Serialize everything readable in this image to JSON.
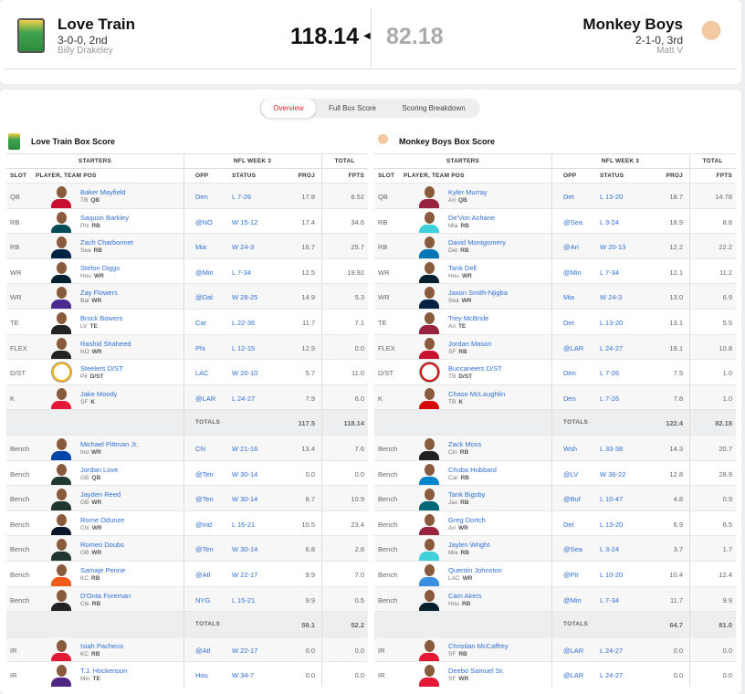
{
  "header": {
    "home": {
      "name": "Love Train",
      "record": "3-0-0, 2nd",
      "owner": "Billy Drakeley",
      "score": "118.14"
    },
    "away": {
      "name": "Monkey Boys",
      "record": "2-1-0, 3rd",
      "owner": "Matt V",
      "score": "82.18"
    },
    "winner_arrow": "◀"
  },
  "tabs": [
    {
      "label": "Overview",
      "active": true
    },
    {
      "label": "Full Box Score"
    },
    {
      "label": "Scoring Breakdown"
    }
  ],
  "colors": {
    "link": "#2f6fd6",
    "active_tab": "#e2232a"
  },
  "columns": {
    "starters": "STARTERS",
    "week": "NFL WEEK 3",
    "total": "TOTAL",
    "slot": "SLOT",
    "player": "PLAYER, TEAM POS",
    "opp": "OPP",
    "status": "STATUS",
    "proj": "PROJ",
    "fpts": "FPTS",
    "totals": "TOTALS"
  },
  "boxes": [
    {
      "title": "Love Train Box Score",
      "starters": [
        {
          "slot": "QB",
          "name": "Baker Mayfield",
          "team": "TB",
          "pos": "QB",
          "opp": "Den",
          "status": "L 7-26",
          "proj": "17.8",
          "fpts": "8.52",
          "c": "#c8102e"
        },
        {
          "slot": "RB",
          "name": "Saquon Barkley",
          "team": "Phi",
          "pos": "RB",
          "opp": "@NO",
          "status": "W 15-12",
          "proj": "17.4",
          "fpts": "34.6",
          "c": "#004c54"
        },
        {
          "slot": "RB",
          "name": "Zach Charbonnet",
          "team": "Sea",
          "pos": "RB",
          "opp": "Mia",
          "status": "W 24-3",
          "proj": "16.7",
          "fpts": "25.7",
          "c": "#002244"
        },
        {
          "slot": "WR",
          "name": "Stefon Diggs",
          "team": "Hou",
          "pos": "WR",
          "opp": "@Min",
          "status": "L 7-34",
          "proj": "12.5",
          "fpts": "19.92",
          "c": "#03202f"
        },
        {
          "slot": "WR",
          "name": "Zay Flowers",
          "team": "Bal",
          "pos": "WR",
          "opp": "@Dal",
          "status": "W 28-25",
          "proj": "14.9",
          "fpts": "5.3",
          "c": "#4b2b8f"
        },
        {
          "slot": "TE",
          "name": "Brock Bowers",
          "team": "LV",
          "pos": "TE",
          "opp": "Car",
          "status": "L 22-36",
          "proj": "11.7",
          "fpts": "7.1",
          "c": "#222"
        },
        {
          "slot": "FLEX",
          "name": "Rashid Shaheed",
          "team": "NO",
          "pos": "WR",
          "opp": "Phi",
          "status": "L 12-15",
          "proj": "12.9",
          "fpts": "0.0",
          "c": "#222"
        },
        {
          "slot": "D/ST",
          "name": "Steelers D/ST",
          "team": "Pit",
          "pos": "D/ST",
          "opp": "LAC",
          "status": "W 20-10",
          "proj": "5.7",
          "fpts": "11.0",
          "c": "#ffb612",
          "dst": true
        },
        {
          "slot": "K",
          "name": "Jake Moody",
          "team": "SF",
          "pos": "K",
          "opp": "@LAR",
          "status": "L 24-27",
          "proj": "7.9",
          "fpts": "6.0",
          "c": "#e31837"
        }
      ],
      "starters_totals": {
        "proj": "117.5",
        "fpts": "118.14"
      },
      "bench": [
        {
          "slot": "Bench",
          "name": "Michael Pittman Jr.",
          "team": "Ind",
          "pos": "WR",
          "opp": "Chi",
          "status": "W 21-16",
          "proj": "13.4",
          "fpts": "7.6",
          "c": "#0044aa"
        },
        {
          "slot": "Bench",
          "name": "Jordan Love",
          "team": "GB",
          "pos": "QB",
          "opp": "@Ten",
          "status": "W 30-14",
          "proj": "0.0",
          "fpts": "0.0",
          "c": "#203731"
        },
        {
          "slot": "Bench",
          "name": "Jayden Reed",
          "team": "GB",
          "pos": "WR",
          "opp": "@Ten",
          "status": "W 30-14",
          "proj": "8.7",
          "fpts": "10.9",
          "c": "#203731"
        },
        {
          "slot": "Bench",
          "name": "Rome Odunze",
          "team": "Chi",
          "pos": "WR",
          "opp": "@Ind",
          "status": "L 16-21",
          "proj": "10.5",
          "fpts": "23.4",
          "c": "#0b162a"
        },
        {
          "slot": "Bench",
          "name": "Romeo Doubs",
          "team": "GB",
          "pos": "WR",
          "opp": "@Ten",
          "status": "W 30-14",
          "proj": "6.8",
          "fpts": "2.8",
          "c": "#203731"
        },
        {
          "slot": "Bench",
          "name": "Samaje Perine",
          "team": "KC",
          "pos": "RB",
          "opp": "@Atl",
          "status": "W 22-17",
          "proj": "9.9",
          "fpts": "7.0",
          "c": "#f05a1a"
        },
        {
          "slot": "Bench",
          "name": "D'Onta Foreman",
          "team": "Cle",
          "pos": "RB",
          "opp": "NYG",
          "status": "L 15-21",
          "proj": "9.9",
          "fpts": "0.5",
          "c": "#222"
        }
      ],
      "bench_totals": {
        "proj": "59.1",
        "fpts": "52.2"
      },
      "ir": [
        {
          "slot": "IR",
          "name": "Isiah Pacheco",
          "team": "KC",
          "pos": "RB",
          "opp": "@Atl",
          "status": "W 22-17",
          "proj": "0.0",
          "fpts": "0.0",
          "c": "#e31837"
        },
        {
          "slot": "IR",
          "name": "T.J. Hockenson",
          "team": "Min",
          "pos": "TE",
          "opp": "Hou",
          "status": "W 34-7",
          "proj": "0.0",
          "fpts": "0.0",
          "c": "#4f2683"
        }
      ]
    },
    {
      "title": "Monkey Boys Box Score",
      "starters": [
        {
          "slot": "QB",
          "name": "Kyler Murray",
          "team": "Ari",
          "pos": "QB",
          "opp": "Det",
          "status": "L 13-20",
          "proj": "18.7",
          "fpts": "14.78",
          "c": "#97233f"
        },
        {
          "slot": "RB",
          "name": "De'Von Achane",
          "team": "Mia",
          "pos": "RB",
          "opp": "@Sea",
          "status": "L 3-24",
          "proj": "18.9",
          "fpts": "8.8",
          "c": "#3fd0dc"
        },
        {
          "slot": "RB",
          "name": "David Montgomery",
          "team": "Det",
          "pos": "RB",
          "opp": "@Ari",
          "status": "W 20-13",
          "proj": "12.2",
          "fpts": "22.2",
          "c": "#0076b6"
        },
        {
          "slot": "WR",
          "name": "Tank Dell",
          "team": "Hou",
          "pos": "WR",
          "opp": "@Min",
          "status": "L 7-34",
          "proj": "12.1",
          "fpts": "11.2",
          "c": "#03202f"
        },
        {
          "slot": "WR",
          "name": "Jaxon Smith-Njigba",
          "team": "Sea",
          "pos": "WR",
          "opp": "Mia",
          "status": "W 24-3",
          "proj": "13.0",
          "fpts": "6.9",
          "c": "#002244"
        },
        {
          "slot": "TE",
          "name": "Trey McBride",
          "team": "Ari",
          "pos": "TE",
          "opp": "Det",
          "status": "L 13-20",
          "proj": "13.1",
          "fpts": "5.5",
          "c": "#97233f"
        },
        {
          "slot": "FLEX",
          "name": "Jordan Mason",
          "team": "SF",
          "pos": "RB",
          "opp": "@LAR",
          "status": "L 24-27",
          "proj": "19.1",
          "fpts": "10.8",
          "c": "#c8102e"
        },
        {
          "slot": "D/ST",
          "name": "Buccaneers D/ST",
          "team": "TB",
          "pos": "D/ST",
          "opp": "Den",
          "status": "L 7-26",
          "proj": "7.5",
          "fpts": "1.0",
          "c": "#d50a0a",
          "dst": true
        },
        {
          "slot": "K",
          "name": "Chase McLaughlin",
          "team": "TB",
          "pos": "K",
          "opp": "Den",
          "status": "L 7-26",
          "proj": "7.8",
          "fpts": "1.0",
          "c": "#d50a0a"
        }
      ],
      "starters_totals": {
        "proj": "122.4",
        "fpts": "82.18"
      },
      "bench": [
        {
          "slot": "Bench",
          "name": "Zack Moss",
          "team": "Cin",
          "pos": "RB",
          "opp": "Wsh",
          "status": "L 33-38",
          "proj": "14.3",
          "fpts": "20.7",
          "c": "#222"
        },
        {
          "slot": "Bench",
          "name": "Chuba Hubbard",
          "team": "Car",
          "pos": "RB",
          "opp": "@LV",
          "status": "W 36-22",
          "proj": "12.8",
          "fpts": "28.9",
          "c": "#0085ca"
        },
        {
          "slot": "Bench",
          "name": "Tank Bigsby",
          "team": "Jax",
          "pos": "RB",
          "opp": "@Buf",
          "status": "L 10-47",
          "proj": "4.8",
          "fpts": "0.9",
          "c": "#006778"
        },
        {
          "slot": "Bench",
          "name": "Greg Dortch",
          "team": "Ari",
          "pos": "WR",
          "opp": "Det",
          "status": "L 13-20",
          "proj": "6.9",
          "fpts": "6.5",
          "c": "#97233f"
        },
        {
          "slot": "Bench",
          "name": "Jaylen Wright",
          "team": "Mia",
          "pos": "RB",
          "opp": "@Sea",
          "status": "L 3-24",
          "proj": "3.7",
          "fpts": "1.7",
          "c": "#3fd0dc"
        },
        {
          "slot": "Bench",
          "name": "Quentin Johnston",
          "team": "LAC",
          "pos": "WR",
          "opp": "@Pit",
          "status": "L 10-20",
          "proj": "10.4",
          "fpts": "12.4",
          "c": "#3a8fe0"
        },
        {
          "slot": "Bench",
          "name": "Cam Akers",
          "team": "Hou",
          "pos": "RB",
          "opp": "@Min",
          "status": "L 7-34",
          "proj": "11.7",
          "fpts": "9.9",
          "c": "#03202f"
        }
      ],
      "bench_totals": {
        "proj": "64.7",
        "fpts": "81.0"
      },
      "ir": [
        {
          "slot": "IR",
          "name": "Christian McCaffrey",
          "team": "SF",
          "pos": "RB",
          "opp": "@LAR",
          "status": "L 24-27",
          "proj": "0.0",
          "fpts": "0.0",
          "c": "#e31837"
        },
        {
          "slot": "IR",
          "name": "Deebo Samuel Sr.",
          "team": "SF",
          "pos": "WR",
          "opp": "@LAR",
          "status": "L 24-27",
          "proj": "0.0",
          "fpts": "0.0",
          "c": "#e31837"
        }
      ]
    }
  ]
}
